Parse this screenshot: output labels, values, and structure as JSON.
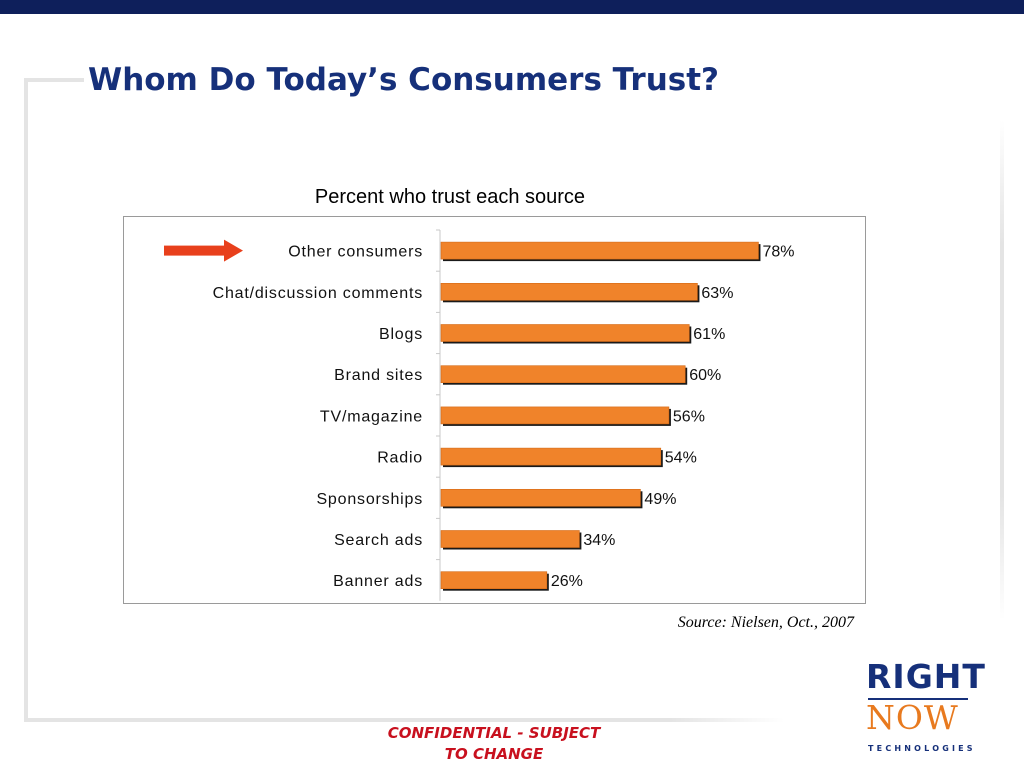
{
  "slide": {
    "title": "Whom Do Today’s Consumers Trust?",
    "source": "Source: Nielsen, Oct., 2007",
    "confidential_line1": "CONFIDENTIAL - SUBJECT",
    "confidential_line2": "TO CHANGE"
  },
  "logo": {
    "line1": "RIGHT",
    "line2": "NOW",
    "line3": "TECHNOLOGIES"
  },
  "colors": {
    "title": "#16307a",
    "bar": "#f0832a",
    "bar_edge": "#d46a16",
    "arrow": "#e8401c",
    "confidential": "#c8101e",
    "logo_navy": "#16307a",
    "logo_orange": "#e87a1f"
  },
  "icons": {
    "highlight": "right-arrow-icon"
  },
  "chart_data": {
    "type": "bar",
    "orientation": "horizontal",
    "title": "Percent who trust each source",
    "categories": [
      "Other consumers",
      "Chat/discussion comments",
      "Blogs",
      "Brand sites",
      "TV/magazine",
      "Radio",
      "Sponsorships",
      "Search ads",
      "Banner ads"
    ],
    "values": [
      78,
      63,
      61,
      60,
      56,
      54,
      49,
      34,
      26
    ],
    "data_labels": [
      "78%",
      "63%",
      "61%",
      "60%",
      "56%",
      "54%",
      "49%",
      "34%",
      "26%"
    ],
    "highlighted_category": "Other consumers",
    "xlim": [
      0,
      100
    ],
    "grid": false,
    "legend": "none"
  }
}
